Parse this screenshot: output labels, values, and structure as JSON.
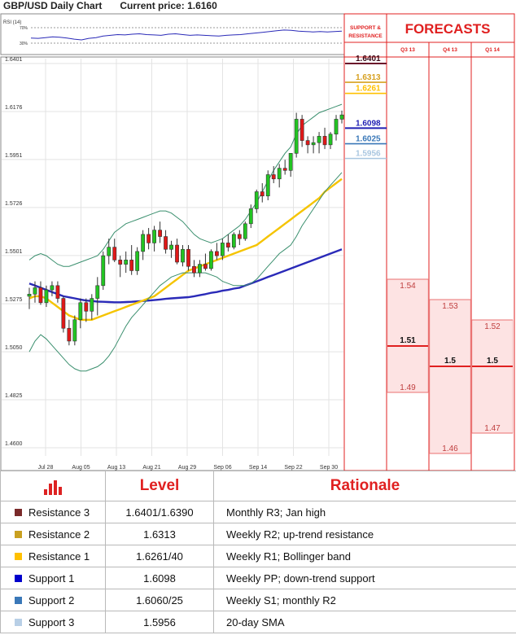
{
  "header": {
    "title": "GBP/USD Daily Chart",
    "current_price_label": "Current price:",
    "current_price_value": "1.6160"
  },
  "rsi": {
    "label": "RSI (14)",
    "levels": [
      "70%",
      "30%"
    ],
    "values": [
      55,
      54,
      56,
      58,
      57,
      55,
      52,
      50,
      54,
      56,
      60,
      62,
      64,
      63,
      65,
      66,
      64,
      63,
      62,
      65,
      66,
      64,
      62,
      63,
      62,
      61,
      60,
      62,
      63,
      64,
      66,
      68,
      70,
      72,
      74,
      76,
      75,
      73,
      72,
      71,
      72,
      71,
      72,
      73
    ]
  },
  "side_panel": {
    "support_resistance_header": "SUPPORT & RESISTANCE",
    "forecasts_header": "FORECASTS",
    "quarters": [
      "Q3 13",
      "Q4 13",
      "Q1 14"
    ],
    "levels": [
      {
        "value": "1.6401",
        "color": "#6b0f2a"
      },
      {
        "value": "1.6313",
        "color": "#d6a020"
      },
      {
        "value": "1.6261",
        "color": "#ffc000"
      },
      {
        "value": "1.6098",
        "color": "#1f1fb3"
      },
      {
        "value": "1.6025",
        "color": "#3a78b8"
      },
      {
        "value": "1.5956",
        "color": "#a9c6e0"
      }
    ],
    "forecasts": [
      {
        "quarter": "Q3 13",
        "high": 1.54,
        "mid": 1.51,
        "low": 1.49,
        "high_label": "1.54",
        "mid_label": "1.51",
        "low_label": "1.49"
      },
      {
        "quarter": "Q4 13",
        "high": 1.53,
        "mid": 1.5,
        "low": 1.46,
        "high_label": "1.53",
        "mid_label": "1.5",
        "low_label": "1.46"
      },
      {
        "quarter": "Q1 14",
        "high": 1.52,
        "mid": 1.5,
        "low": 1.47,
        "high_label": "1.52",
        "mid_label": "1.5",
        "low_label": "1.47"
      }
    ]
  },
  "chart_data": {
    "type": "candlestick",
    "title": "GBP/USD Daily Chart",
    "ylim": [
      1.46,
      1.6401
    ],
    "y_ticks": [
      "1.6401",
      "1.6176",
      "1.5951",
      "1.5726",
      "1.5501",
      "1.5275",
      "1.5050",
      "1.4825",
      "1.4600"
    ],
    "x_tick_labels": [
      "Jul 28",
      "Aug 05",
      "Aug 13",
      "Aug 21",
      "Aug 29",
      "Sep 06",
      "Sep 14",
      "Sep 22",
      "Sep 30"
    ],
    "candles": [
      {
        "o": 1.531,
        "h": 1.535,
        "l": 1.525,
        "c": 1.532
      },
      {
        "o": 1.532,
        "h": 1.538,
        "l": 1.528,
        "c": 1.535
      },
      {
        "o": 1.535,
        "h": 1.538,
        "l": 1.527,
        "c": 1.528
      },
      {
        "o": 1.528,
        "h": 1.536,
        "l": 1.526,
        "c": 1.534
      },
      {
        "o": 1.534,
        "h": 1.538,
        "l": 1.531,
        "c": 1.536
      },
      {
        "o": 1.536,
        "h": 1.538,
        "l": 1.528,
        "c": 1.53
      },
      {
        "o": 1.53,
        "h": 1.531,
        "l": 1.514,
        "c": 1.516
      },
      {
        "o": 1.516,
        "h": 1.52,
        "l": 1.508,
        "c": 1.51
      },
      {
        "o": 1.51,
        "h": 1.522,
        "l": 1.508,
        "c": 1.52
      },
      {
        "o": 1.52,
        "h": 1.53,
        "l": 1.516,
        "c": 1.528
      },
      {
        "o": 1.528,
        "h": 1.53,
        "l": 1.519,
        "c": 1.524
      },
      {
        "o": 1.524,
        "h": 1.532,
        "l": 1.52,
        "c": 1.53
      },
      {
        "o": 1.53,
        "h": 1.54,
        "l": 1.522,
        "c": 1.536
      },
      {
        "o": 1.536,
        "h": 1.552,
        "l": 1.534,
        "c": 1.55
      },
      {
        "o": 1.55,
        "h": 1.558,
        "l": 1.546,
        "c": 1.554
      },
      {
        "o": 1.554,
        "h": 1.558,
        "l": 1.547,
        "c": 1.548
      },
      {
        "o": 1.548,
        "h": 1.55,
        "l": 1.54,
        "c": 1.546
      },
      {
        "o": 1.546,
        "h": 1.552,
        "l": 1.542,
        "c": 1.548
      },
      {
        "o": 1.548,
        "h": 1.555,
        "l": 1.541,
        "c": 1.543
      },
      {
        "o": 1.543,
        "h": 1.554,
        "l": 1.541,
        "c": 1.552
      },
      {
        "o": 1.552,
        "h": 1.562,
        "l": 1.548,
        "c": 1.56
      },
      {
        "o": 1.56,
        "h": 1.563,
        "l": 1.553,
        "c": 1.556
      },
      {
        "o": 1.556,
        "h": 1.564,
        "l": 1.552,
        "c": 1.562
      },
      {
        "o": 1.562,
        "h": 1.566,
        "l": 1.556,
        "c": 1.559
      },
      {
        "o": 1.559,
        "h": 1.562,
        "l": 1.551,
        "c": 1.553
      },
      {
        "o": 1.553,
        "h": 1.557,
        "l": 1.549,
        "c": 1.555
      },
      {
        "o": 1.555,
        "h": 1.558,
        "l": 1.546,
        "c": 1.547
      },
      {
        "o": 1.547,
        "h": 1.555,
        "l": 1.545,
        "c": 1.553
      },
      {
        "o": 1.553,
        "h": 1.555,
        "l": 1.543,
        "c": 1.545
      },
      {
        "o": 1.545,
        "h": 1.548,
        "l": 1.54,
        "c": 1.542
      },
      {
        "o": 1.542,
        "h": 1.548,
        "l": 1.54,
        "c": 1.546
      },
      {
        "o": 1.546,
        "h": 1.551,
        "l": 1.543,
        "c": 1.544
      },
      {
        "o": 1.544,
        "h": 1.553,
        "l": 1.543,
        "c": 1.552
      },
      {
        "o": 1.552,
        "h": 1.556,
        "l": 1.548,
        "c": 1.55
      },
      {
        "o": 1.55,
        "h": 1.558,
        "l": 1.548,
        "c": 1.556
      },
      {
        "o": 1.556,
        "h": 1.56,
        "l": 1.552,
        "c": 1.554
      },
      {
        "o": 1.554,
        "h": 1.561,
        "l": 1.553,
        "c": 1.56
      },
      {
        "o": 1.56,
        "h": 1.562,
        "l": 1.555,
        "c": 1.558
      },
      {
        "o": 1.558,
        "h": 1.566,
        "l": 1.557,
        "c": 1.565
      },
      {
        "o": 1.565,
        "h": 1.574,
        "l": 1.563,
        "c": 1.572
      },
      {
        "o": 1.572,
        "h": 1.581,
        "l": 1.57,
        "c": 1.58
      },
      {
        "o": 1.58,
        "h": 1.584,
        "l": 1.575,
        "c": 1.578
      },
      {
        "o": 1.578,
        "h": 1.59,
        "l": 1.576,
        "c": 1.588
      },
      {
        "o": 1.588,
        "h": 1.592,
        "l": 1.584,
        "c": 1.586
      },
      {
        "o": 1.586,
        "h": 1.593,
        "l": 1.582,
        "c": 1.591
      },
      {
        "o": 1.591,
        "h": 1.595,
        "l": 1.588,
        "c": 1.59
      },
      {
        "o": 1.59,
        "h": 1.598,
        "l": 1.587,
        "c": 1.598
      },
      {
        "o": 1.598,
        "h": 1.617,
        "l": 1.596,
        "c": 1.614
      },
      {
        "o": 1.614,
        "h": 1.616,
        "l": 1.601,
        "c": 1.604
      },
      {
        "o": 1.604,
        "h": 1.606,
        "l": 1.598,
        "c": 1.602
      },
      {
        "o": 1.602,
        "h": 1.606,
        "l": 1.598,
        "c": 1.603
      },
      {
        "o": 1.603,
        "h": 1.608,
        "l": 1.598,
        "c": 1.606
      },
      {
        "o": 1.606,
        "h": 1.61,
        "l": 1.6,
        "c": 1.602
      },
      {
        "o": 1.602,
        "h": 1.608,
        "l": 1.6,
        "c": 1.607
      },
      {
        "o": 1.607,
        "h": 1.616,
        "l": 1.604,
        "c": 1.614
      },
      {
        "o": 1.614,
        "h": 1.618,
        "l": 1.612,
        "c": 1.616
      }
    ],
    "series": [
      {
        "name": "",
        "color": "#2a2ab8",
        "values": [
          1.537,
          1.536,
          1.535,
          1.534,
          1.533,
          1.532,
          1.531,
          1.5305,
          1.53,
          1.5295,
          1.529,
          1.5288,
          1.5285,
          1.5284,
          1.5283,
          1.5282,
          1.5282,
          1.5283,
          1.5284,
          1.5286,
          1.5288,
          1.529,
          1.5292,
          1.5295,
          1.5298,
          1.53,
          1.5302,
          1.5304,
          1.5306,
          1.531,
          1.5315,
          1.532,
          1.5326,
          1.533,
          1.5336,
          1.534,
          1.5346,
          1.535,
          1.536,
          1.537,
          1.538,
          1.539,
          1.54,
          1.541,
          1.542,
          1.543,
          1.544,
          1.545,
          1.546,
          1.547,
          1.548,
          1.549,
          1.55,
          1.551,
          1.552,
          1.553
        ]
      },
      {
        "name": "",
        "color": "#f5c400",
        "values": [
          1.53,
          1.531,
          1.531,
          1.53,
          1.528,
          1.526,
          1.524,
          1.522,
          1.521,
          1.52,
          1.52,
          1.52,
          1.521,
          1.522,
          1.523,
          1.524,
          1.525,
          1.526,
          1.527,
          1.528,
          1.529,
          1.53,
          1.531,
          1.533,
          1.535,
          1.537,
          1.539,
          1.541,
          1.543,
          1.544,
          1.545,
          1.546,
          1.547,
          1.548,
          1.549,
          1.55,
          1.551,
          1.552,
          1.553,
          1.554,
          1.555,
          1.557,
          1.559,
          1.561,
          1.563,
          1.565,
          1.567,
          1.569,
          1.571,
          1.573,
          1.575,
          1.577,
          1.58,
          1.582,
          1.584,
          1.586
        ]
      },
      {
        "name": "",
        "color": "#3a8f6e",
        "values": [
          1.548,
          1.55,
          1.551,
          1.55,
          1.548,
          1.546,
          1.545,
          1.545,
          1.546,
          1.547,
          1.548,
          1.549,
          1.55,
          1.553,
          1.557,
          1.561,
          1.563,
          1.565,
          1.566,
          1.567,
          1.568,
          1.569,
          1.57,
          1.571,
          1.571,
          1.57,
          1.568,
          1.566,
          1.563,
          1.56,
          1.558,
          1.557,
          1.556,
          1.557,
          1.558,
          1.56,
          1.562,
          1.564,
          1.567,
          1.571,
          1.575,
          1.58,
          1.585,
          1.59,
          1.594,
          1.598,
          1.601,
          1.607,
          1.611,
          1.613,
          1.615,
          1.617,
          1.618,
          1.619,
          1.62,
          1.621
        ]
      },
      {
        "name": "",
        "color": "#3a8f6e",
        "values": [
          1.505,
          1.51,
          1.513,
          1.511,
          1.508,
          1.505,
          1.502,
          1.499,
          1.497,
          1.496,
          1.496,
          1.497,
          1.498,
          1.5,
          1.503,
          1.507,
          1.512,
          1.517,
          1.521,
          1.524,
          1.527,
          1.53,
          1.533,
          1.536,
          1.538,
          1.54,
          1.541,
          1.542,
          1.542,
          1.542,
          1.542,
          1.542,
          1.541,
          1.54,
          1.538,
          1.537,
          1.536,
          1.536,
          1.536,
          1.537,
          1.539,
          1.542,
          1.545,
          1.548,
          1.551,
          1.553,
          1.555,
          1.559,
          1.564,
          1.568,
          1.572,
          1.576,
          1.58,
          1.583,
          1.586,
          1.589
        ]
      }
    ]
  },
  "table": {
    "header": {
      "level": "Level",
      "rationale": "Rationale"
    },
    "rows": [
      {
        "name": "Resistance 3",
        "color": "#7a2a2a",
        "level": "1.6401/1.6390",
        "rationale": "Monthly R3; Jan high"
      },
      {
        "name": "Resistance 2",
        "color": "#c9a020",
        "level": "1.6313",
        "rationale": "Weekly R2; up-trend resistance"
      },
      {
        "name": "Resistance 1",
        "color": "#ffc000",
        "level": "1.6261/40",
        "rationale": "Weekly R1; Bollinger band"
      },
      {
        "name": "Support 1",
        "color": "#0000cc",
        "level": "1.6098",
        "rationale": "Weekly PP; down-trend support"
      },
      {
        "name": "Support 2",
        "color": "#3a78b8",
        "level": "1.6060/25",
        "rationale": "Weekly S1; monthly R2"
      },
      {
        "name": "Support 3",
        "color": "#b8cfe6",
        "level": "1.5956",
        "rationale": "20-day SMA"
      }
    ]
  },
  "colors": {
    "bull": "#22c422",
    "bear": "#e01818",
    "accent_red": "#e02020",
    "forecast_fill": "#fde3e3"
  }
}
